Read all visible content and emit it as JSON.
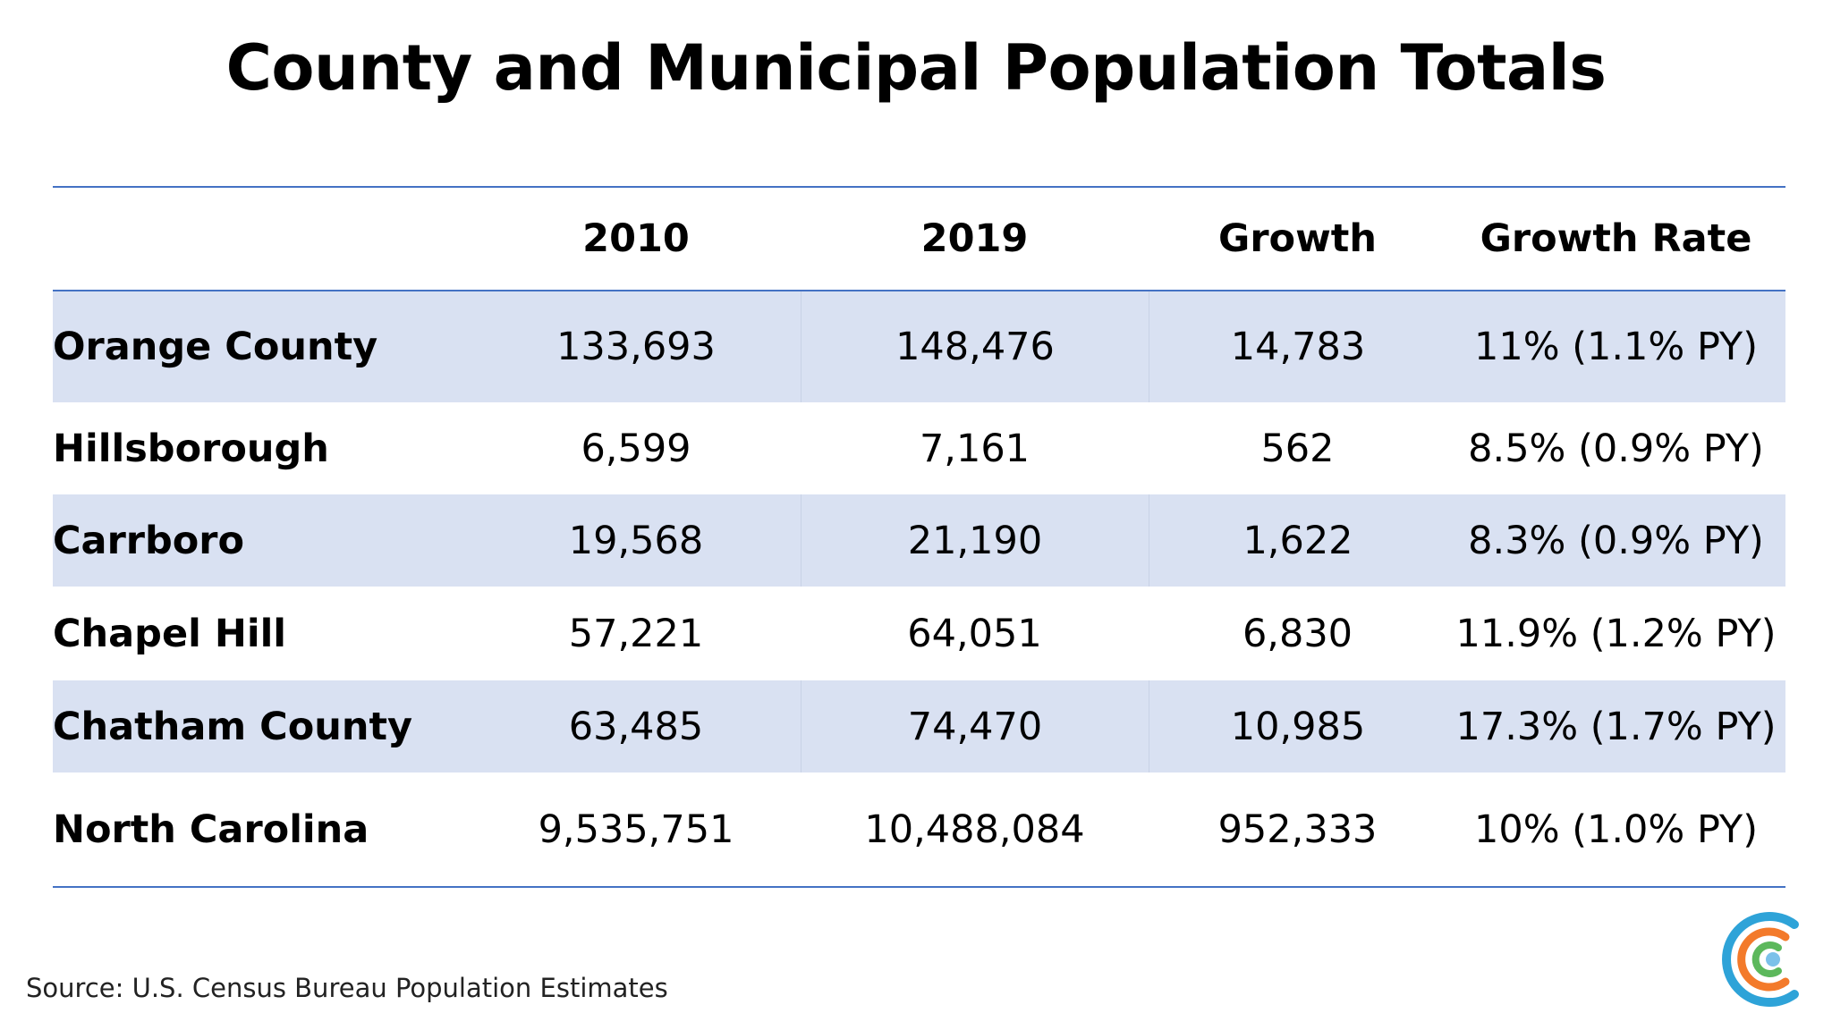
{
  "title": "County and Municipal Population Totals",
  "table": {
    "headers": [
      "",
      "2010",
      "2019",
      "Growth",
      "Growth Rate"
    ],
    "rows": [
      {
        "name": "Orange County",
        "y2010": "133,693",
        "y2019": "148,476",
        "growth": "14,783",
        "rate": "11%  (1.1% PY)"
      },
      {
        "name": "Hillsborough",
        "y2010": "6,599",
        "y2019": "7,161",
        "growth": "562",
        "rate": "8.5%  (0.9% PY)"
      },
      {
        "name": "Carrboro",
        "y2010": "19,568",
        "y2019": "21,190",
        "growth": "1,622",
        "rate": "8.3%  (0.9% PY)"
      },
      {
        "name": "Chapel Hill",
        "y2010": "57,221",
        "y2019": "64,051",
        "growth": "6,830",
        "rate": "11.9%  (1.2% PY)"
      },
      {
        "name": "Chatham County",
        "y2010": "63,485",
        "y2019": "74,470",
        "growth": "10,985",
        "rate": "17.3%  (1.7% PY)"
      },
      {
        "name": "North Carolina",
        "y2010": "9,535,751",
        "y2019": "10,488,084",
        "growth": "952,333",
        "rate": "10%  (1.0% PY)"
      }
    ]
  },
  "source": "Source: U.S. Census Bureau Population Estimates",
  "colors": {
    "rule": "#4472c4",
    "shaded_row": "#d9e1f2",
    "logo_blue": "#2ea3d8",
    "logo_orange": "#f37a2b",
    "logo_green": "#5cb85c",
    "logo_dot": "#7cc1ea"
  },
  "logo": {
    "icon": "organization-logo-icon"
  }
}
